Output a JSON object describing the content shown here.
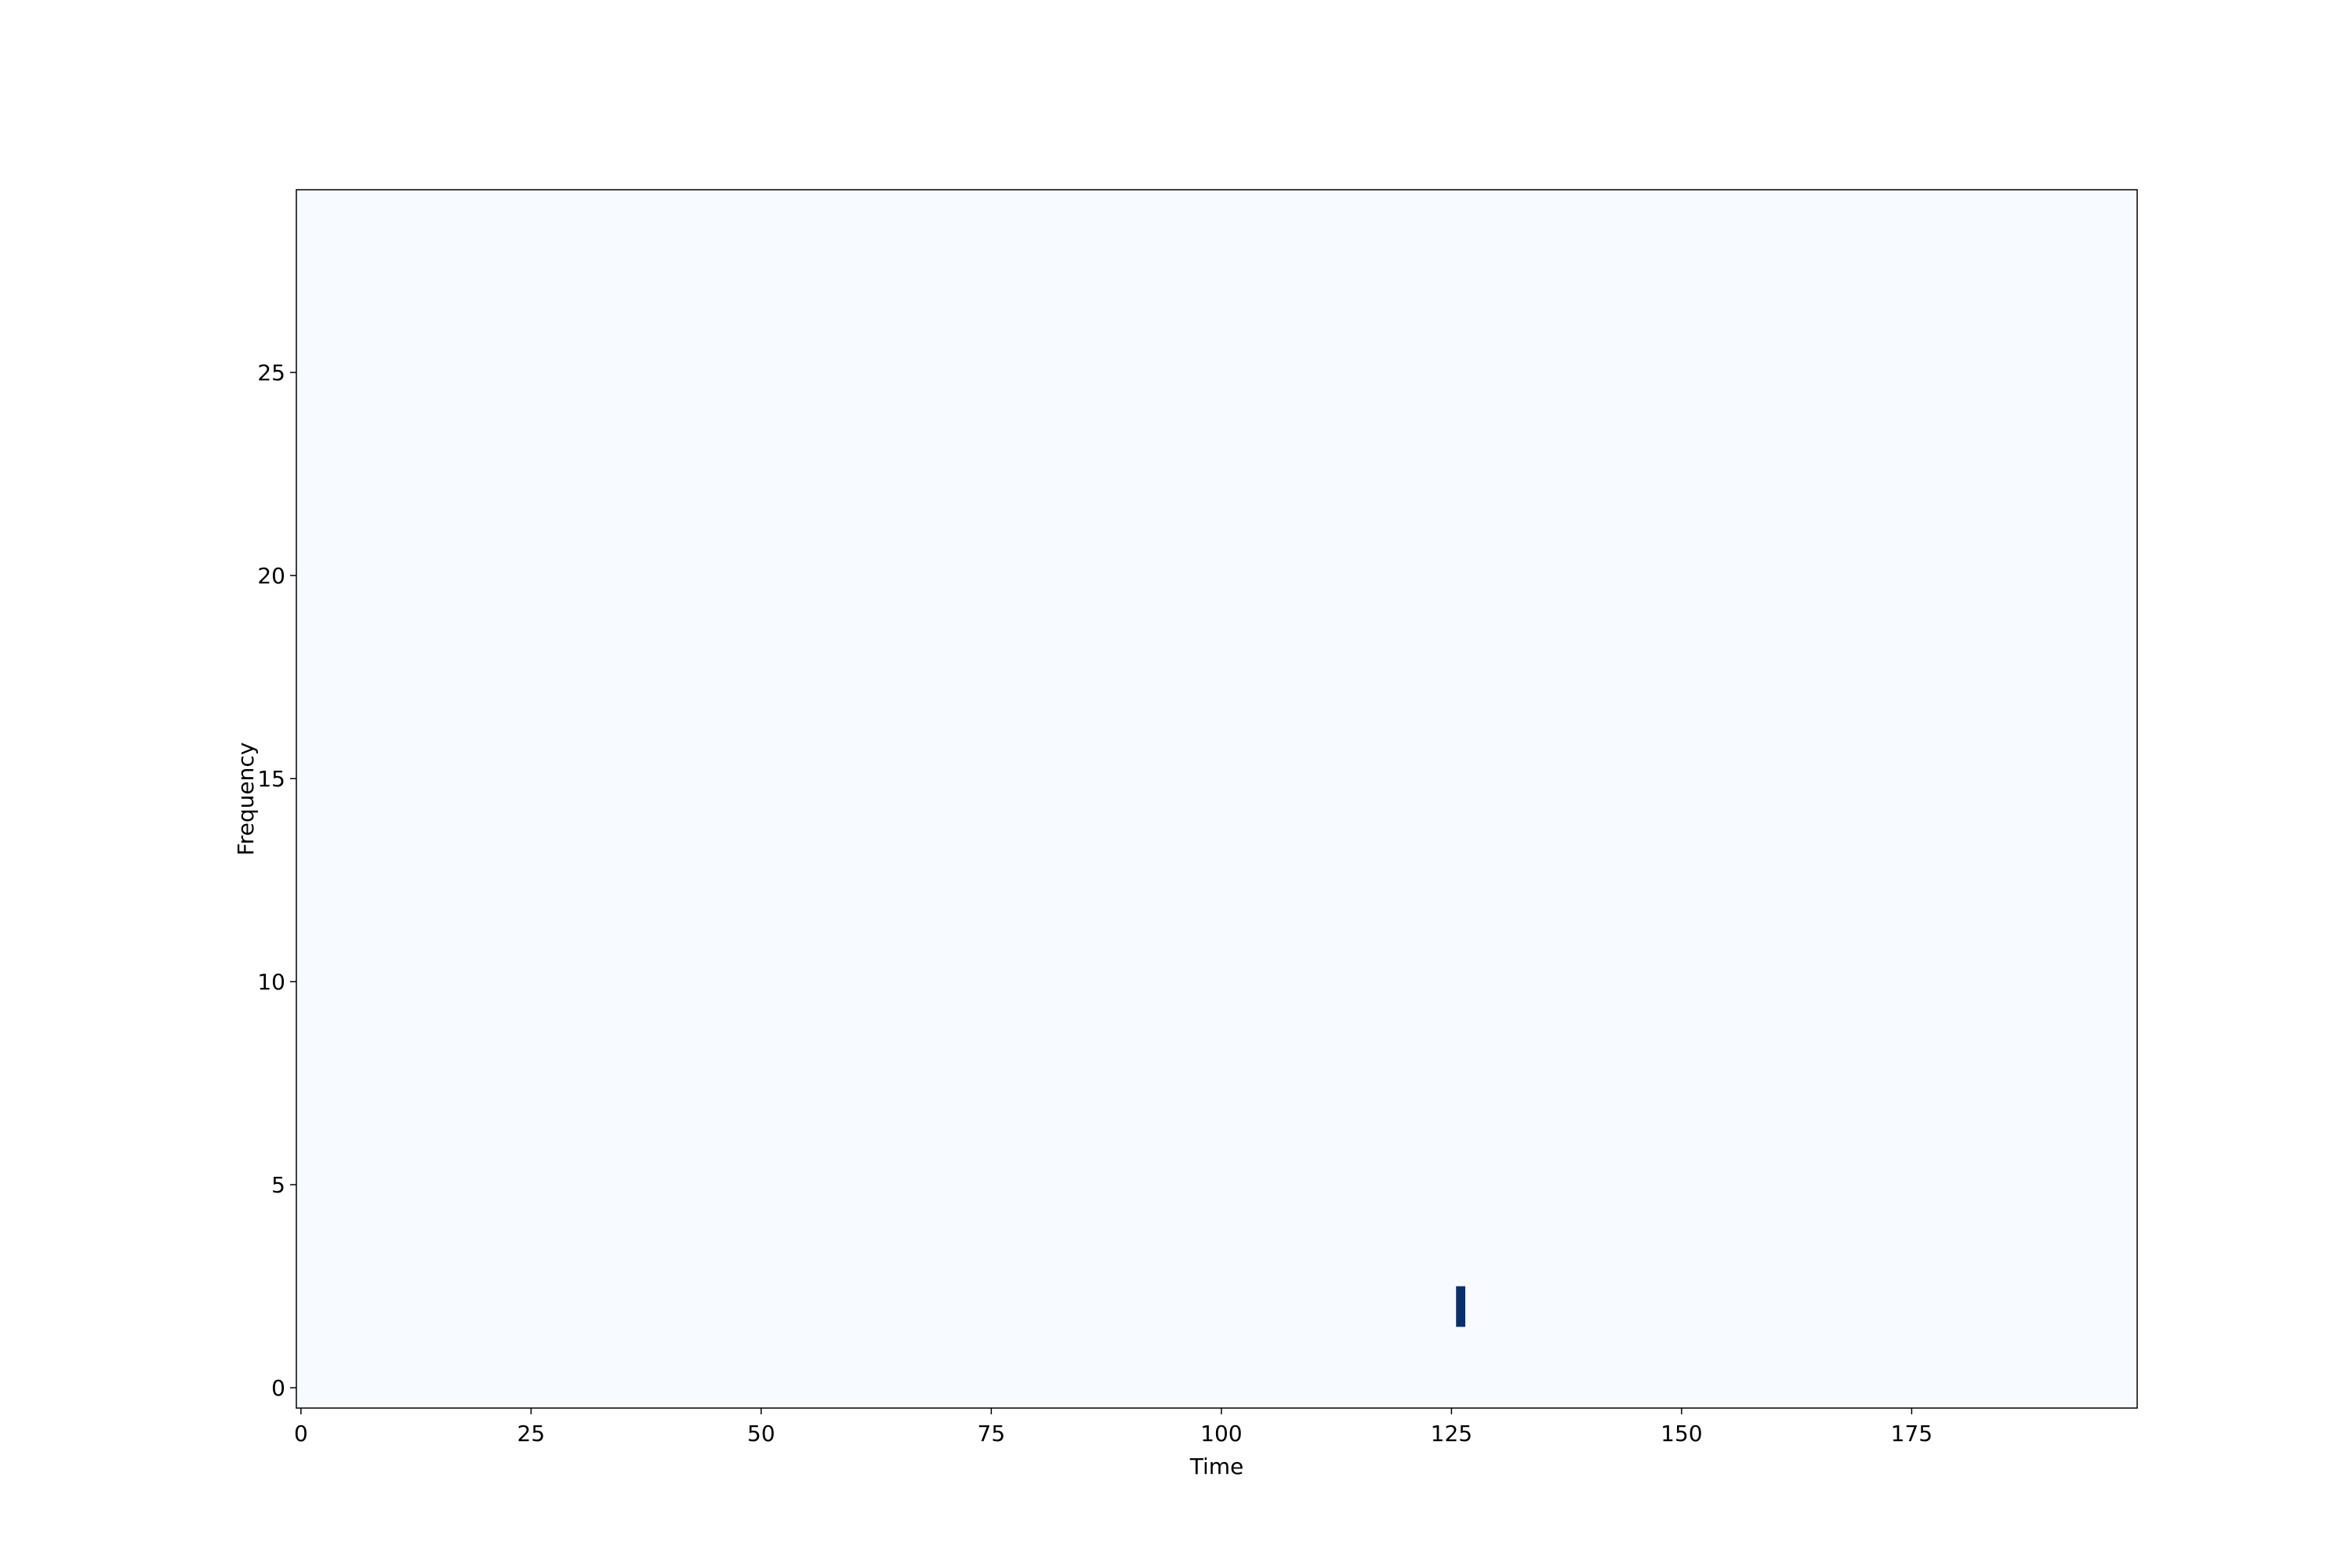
{
  "chart_data": {
    "type": "heatmap",
    "title": "",
    "xlabel": "Time",
    "ylabel": "Frequency",
    "xlim": [
      -0.5,
      199.5
    ],
    "ylim": [
      -0.5,
      29.5
    ],
    "xticks": [
      0,
      25,
      50,
      75,
      100,
      125,
      150,
      175
    ],
    "yticks": [
      0,
      5,
      10,
      15,
      20,
      25
    ],
    "grid": false,
    "colormap": "Blues",
    "background_color": "#f7fbff",
    "cells": [
      {
        "x": 126,
        "y": 2,
        "value": 1,
        "color": "#08306b"
      }
    ]
  }
}
